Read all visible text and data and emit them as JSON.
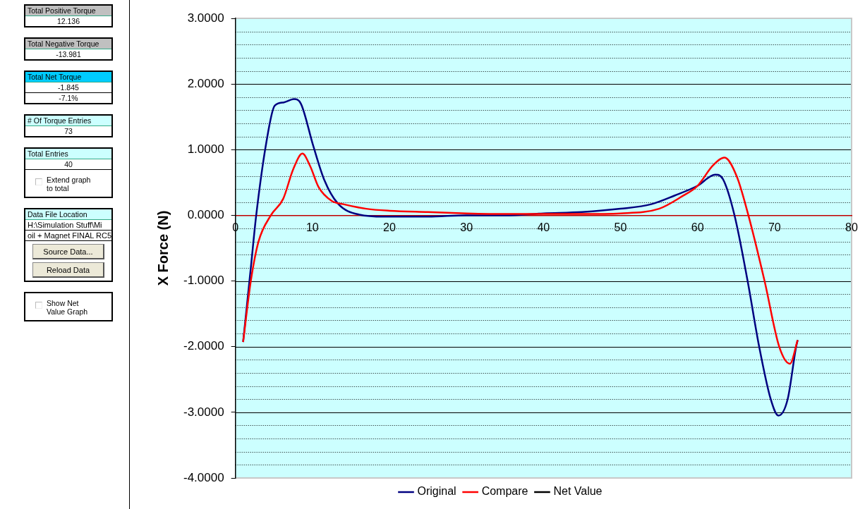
{
  "chart_data": [
    {
      "type": "other",
      "annotations": [
        "Total Positive Torque",
        "12.136",
        "Total Negative Torque",
        "-13.981",
        "Total Net Torque",
        "-1.845",
        "-7.1%",
        "# Of Torque Entries",
        "73",
        "Total Entries",
        "40",
        "Extend graph to total",
        "Data File Location",
        "H:\\Simulation Stuff\\Mi",
        "oil + Magnet FINAL RC5",
        "Source Data...",
        "Reload Data",
        "Show Net Value Graph"
      ]
    },
    {
      "type": "line",
      "ylabel": "X Force (N)",
      "xlim": [
        0,
        80
      ],
      "xticks": [
        0,
        10,
        20,
        30,
        40,
        50,
        60,
        70,
        80
      ],
      "ylim": [
        -4,
        3
      ],
      "yticks": [
        {
          "value": -4,
          "label": "-4.0000"
        },
        {
          "value": -3,
          "label": "-3.0000"
        },
        {
          "value": -2,
          "label": "-2.0000"
        },
        {
          "value": -1,
          "label": "-1.0000"
        },
        {
          "value": 0,
          "label": "0.0000"
        },
        {
          "value": 1,
          "label": "1.0000"
        },
        {
          "value": 2,
          "label": "2.0000"
        },
        {
          "value": 3,
          "label": "3.0000"
        }
      ],
      "grid": "y",
      "legend": "bottom",
      "marker": "none",
      "line_style": "solid",
      "series": [
        {
          "name": "Original",
          "color": "#000080",
          "x": [
            1,
            2,
            2.7,
            4,
            5.1,
            6.3,
            7.6,
            8.5,
            10.1,
            11.5,
            13.3,
            16.1,
            19.3,
            25,
            30,
            35,
            40,
            45,
            50,
            54,
            57,
            60,
            62.3,
            63.3,
            64.8,
            66.5,
            68,
            69.5,
            70.5,
            71.7,
            72.8,
            73
          ],
          "values": [
            -1.93,
            -0.8,
            0,
            1.1,
            1.67,
            1.72,
            1.77,
            1.7,
            1.06,
            0.55,
            0.18,
            0.01,
            -0.02,
            -0.02,
            0,
            0,
            0.03,
            0.05,
            0.1,
            0.17,
            0.3,
            0.45,
            0.62,
            0.55,
            0,
            -1,
            -2,
            -2.8,
            -3.05,
            -2.8,
            -2,
            -1.9
          ]
        },
        {
          "name": "Compare",
          "color": "#ff0000",
          "x": [
            1,
            2,
            3,
            4.6,
            6.2,
            7.5,
            8.7,
            9.7,
            10.8,
            12.5,
            14,
            17,
            20,
            25,
            30,
            35,
            40,
            45,
            50,
            55,
            58,
            60,
            62,
            63.5,
            65.1,
            66.6,
            68.7,
            70.6,
            72,
            73
          ],
          "values": [
            -1.93,
            -1,
            -0.4,
            0,
            0.25,
            0.7,
            0.94,
            0.75,
            0.43,
            0.22,
            0.17,
            0.1,
            0.07,
            0.05,
            0.03,
            0.02,
            0.02,
            0.02,
            0.03,
            0.1,
            0.29,
            0.45,
            0.76,
            0.88,
            0.59,
            0,
            -1,
            -2,
            -2.26,
            -1.9
          ]
        },
        {
          "name": "Net Value",
          "color": "#000000"
        }
      ]
    }
  ]
}
